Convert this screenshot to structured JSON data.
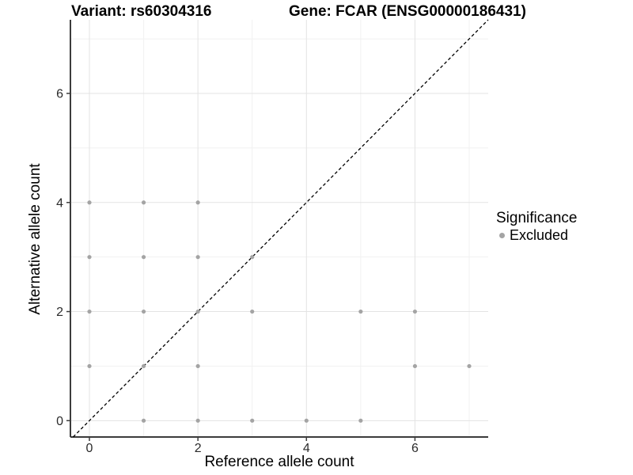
{
  "chart_data": {
    "type": "scatter",
    "title_left": "Variant: rs60304316",
    "title_right": "Gene: FCAR (ENSG00000186431)",
    "xlabel": "Reference allele count",
    "ylabel": "Alternative allele count",
    "xlim": [
      -0.35,
      7.35
    ],
    "ylim": [
      -0.3,
      7.35
    ],
    "x_major_ticks": [
      0,
      2,
      4,
      6
    ],
    "y_major_ticks": [
      0,
      2,
      4,
      6
    ],
    "x_minor_gridlines": [
      1,
      3,
      5,
      7
    ],
    "y_minor_gridlines": [
      1,
      3,
      5,
      7
    ],
    "grid": true,
    "identity_line": {
      "type": "dashed",
      "slope": 1,
      "intercept": 0,
      "color": "#000000"
    },
    "legend": {
      "title": "Significance",
      "position": "right",
      "items": [
        {
          "label": "Excluded",
          "color": "#a4a4a4"
        }
      ]
    },
    "series": [
      {
        "name": "Excluded",
        "color": "#a4a4a4",
        "points": [
          [
            1,
            0
          ],
          [
            2,
            0
          ],
          [
            3,
            0
          ],
          [
            4,
            0
          ],
          [
            5,
            0
          ],
          [
            0,
            1
          ],
          [
            1,
            1
          ],
          [
            2,
            1
          ],
          [
            6,
            1
          ],
          [
            7,
            1
          ],
          [
            0,
            2
          ],
          [
            1,
            2
          ],
          [
            2,
            2
          ],
          [
            3,
            2
          ],
          [
            5,
            2
          ],
          [
            6,
            2
          ],
          [
            0,
            3
          ],
          [
            1,
            3
          ],
          [
            2,
            3
          ],
          [
            3,
            3
          ],
          [
            0,
            4
          ],
          [
            1,
            4
          ],
          [
            2,
            4
          ]
        ]
      }
    ],
    "colors": {
      "point": "#a4a4a4",
      "grid_major": "#e3e3e3",
      "grid_minor": "#f1f1f1",
      "axis": "#3c3c3c",
      "tick_text": "#2b2b2b",
      "title": "#000000"
    }
  }
}
